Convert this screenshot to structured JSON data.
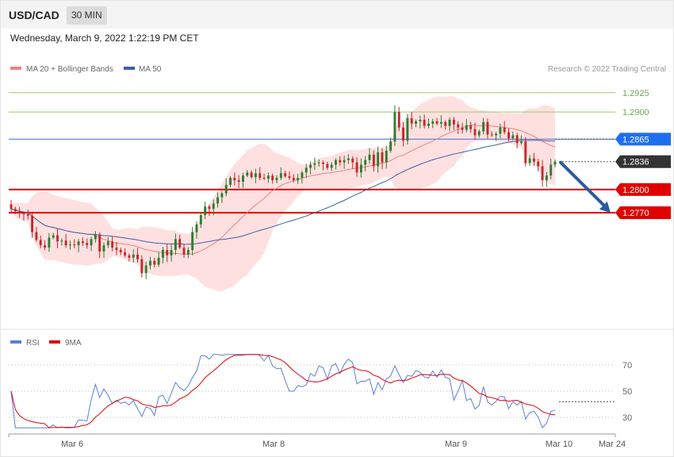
{
  "header": {
    "symbol": "USD/CAD",
    "timeframe": "30 MIN",
    "datetime": "Wednesday, March 9, 2022 1:22:19 PM CET"
  },
  "legend": {
    "ma20": "MA 20 + Bollinger Bands",
    "ma50": "MA 50",
    "rsi": "RSI",
    "rsi_ma": "9MA"
  },
  "copyright": "Research © 2022 Trading Central",
  "colors": {
    "bull": "#2e7d32",
    "bear": "#c62828",
    "ma50": "#3d5fa8",
    "ma20": "#f08080",
    "band": "#ffd6d6",
    "pivot": "#e00000",
    "current": "#333333",
    "resistance": "#99cc66",
    "arrow": "#2c5aa0",
    "rsi": "#5b7fd9",
    "rsi_ma": "#e00000"
  },
  "chart_data": {
    "type": "candlestick",
    "instrument": "USD/CAD",
    "interval": "30 MIN",
    "x_ticks": [
      "Mar 6",
      "Mar 8",
      "Mar 9",
      "Mar 10",
      "Mar 24"
    ],
    "ylim": [
      1.2635,
      1.2935
    ],
    "levels": [
      {
        "value": 1.2925,
        "label": "1.2925",
        "kind": "resistance"
      },
      {
        "value": 1.29,
        "label": "1.2900",
        "kind": "resistance"
      },
      {
        "value": 1.2865,
        "label": "1.2865",
        "kind": "pivot"
      },
      {
        "value": 1.2836,
        "label": "1.2836",
        "kind": "current"
      },
      {
        "value": 1.28,
        "label": "1.2800",
        "kind": "support"
      },
      {
        "value": 1.277,
        "label": "1.2770",
        "kind": "support"
      }
    ],
    "forecast": {
      "from": 1.2836,
      "to": 1.277
    },
    "close": [
      1.2775,
      1.2772,
      1.2769,
      1.2768,
      1.2766,
      1.2745,
      1.2735,
      1.2728,
      1.2725,
      1.2738,
      1.2741,
      1.2733,
      1.2734,
      1.2728,
      1.2729,
      1.2728,
      1.2733,
      1.2731,
      1.2728,
      1.2736,
      1.2742,
      1.272,
      1.2728,
      1.2733,
      1.2725,
      1.2722,
      1.2719,
      1.2715,
      1.2712,
      1.2716,
      1.271,
      1.2692,
      1.2702,
      1.2708,
      1.2703,
      1.2712,
      1.2722,
      1.2715,
      1.2722,
      1.2736,
      1.2725,
      1.2716,
      1.2722,
      1.2745,
      1.2755,
      1.2767,
      1.2778,
      1.2775,
      1.2782,
      1.279,
      1.2795,
      1.2806,
      1.2815,
      1.2812,
      1.281,
      1.2818,
      1.2822,
      1.2816,
      1.2821,
      1.2815,
      1.2814,
      1.2818,
      1.2812,
      1.2815,
      1.2821,
      1.2817,
      1.2815,
      1.2812,
      1.2815,
      1.2822,
      1.2828,
      1.2832,
      1.2834,
      1.2835,
      1.2833,
      1.2828,
      1.2832,
      1.2838,
      1.2835,
      1.2838,
      1.284,
      1.2835,
      1.2822,
      1.2832,
      1.2838,
      1.2845,
      1.283,
      1.2848,
      1.2835,
      1.285,
      1.2862,
      1.29,
      1.288,
      1.2863,
      1.2892,
      1.2885,
      1.2888,
      1.289,
      1.2882,
      1.2885,
      1.2888,
      1.2885,
      1.2887,
      1.2882,
      1.289,
      1.2884,
      1.288,
      1.2877,
      1.2883,
      1.2878,
      1.287,
      1.2875,
      1.2887,
      1.2871,
      1.287,
      1.2872,
      1.288,
      1.2874,
      1.2866,
      1.287,
      1.286,
      1.2862,
      1.2834,
      1.284,
      1.2836,
      1.283,
      1.2812,
      1.2818,
      1.2832,
      1.2836
    ],
    "rsi": {
      "scale_labels": [
        "70",
        "50",
        "30"
      ],
      "ylim": [
        15,
        85
      ],
      "current": 42
    }
  }
}
